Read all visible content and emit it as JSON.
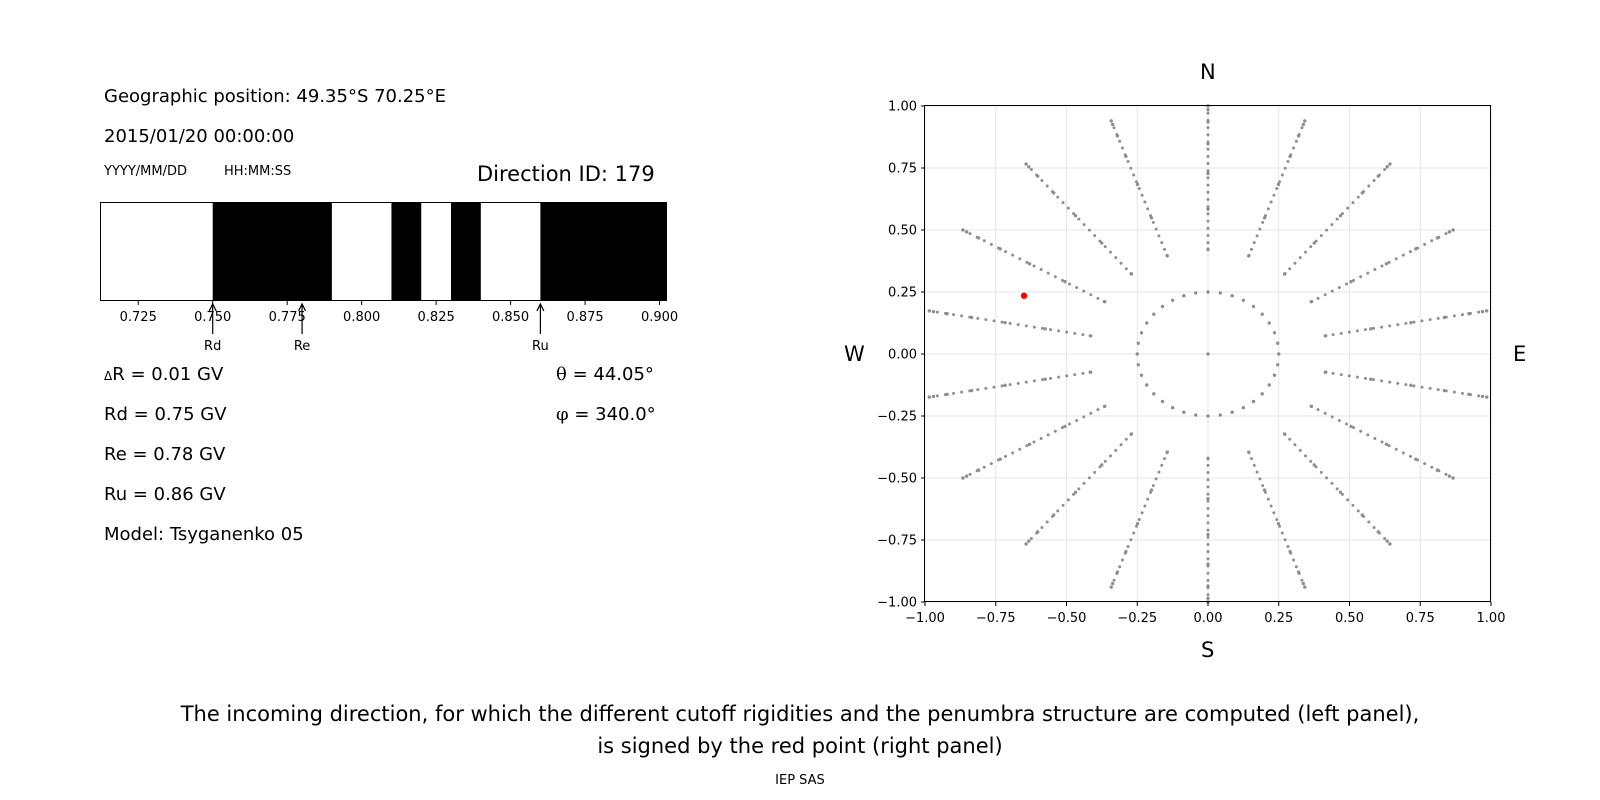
{
  "header": {
    "geo_position": "Geographic position: 49.35°S 70.25°E",
    "datetime": "2015/01/20 00:00:00",
    "date_format": "YYYY/MM/DD",
    "time_format": "HH:MM:SS",
    "direction_id": "Direction ID: 179"
  },
  "params": {
    "delta_r": "R = 0.01 GV",
    "rd": "Rd = 0.75 GV",
    "re": "Re = 0.78 GV",
    "ru": "Ru = 0.86 GV",
    "model": "Model: Tsyganenko 05",
    "theta": "= 44.05°",
    "phi": "= 340.0°"
  },
  "compass": {
    "north": "N",
    "south": "S",
    "west": "W",
    "east": "E"
  },
  "caption": {
    "line1": "The incoming direction, for which the different cutoff rigidities and the penumbra structure are computed (left panel),",
    "line2": "is signed by the red point (right panel)",
    "credit": "IEP SAS"
  },
  "chart_data": [
    {
      "type": "penumbra_bar",
      "xlim": [
        0.7125,
        0.9025
      ],
      "ticks": [
        0.725,
        0.75,
        0.775,
        0.8,
        0.825,
        0.85,
        0.875,
        0.9
      ],
      "tick_labels": [
        "0.725",
        "0.750",
        "0.775",
        "0.800",
        "0.825",
        "0.850",
        "0.875",
        "0.900"
      ],
      "forbidden_bands": [
        [
          0.75,
          0.79
        ],
        [
          0.81,
          0.82
        ],
        [
          0.83,
          0.84
        ],
        [
          0.86,
          0.9025
        ]
      ],
      "markers": [
        {
          "label": "Rd",
          "value": 0.75
        },
        {
          "label": "Re",
          "value": 0.78
        },
        {
          "label": "Ru",
          "value": 0.86
        }
      ],
      "colors": {
        "forbidden": "#000000",
        "allowed": "#ffffff"
      }
    },
    {
      "type": "scatter",
      "xlim": [
        -1,
        1
      ],
      "ylim": [
        -1,
        1
      ],
      "ticks": [
        -1,
        -0.75,
        -0.5,
        -0.25,
        0,
        0.25,
        0.5,
        0.75,
        1
      ],
      "tick_labels": [
        "−1.00",
        "−0.75",
        "−0.50",
        "−0.25",
        "0.00",
        "0.25",
        "0.50",
        "0.75",
        "1.00"
      ],
      "grid": true,
      "grid_ring_radii": [
        0.25,
        0.4225,
        0.584,
        0.728,
        0.848,
        0.936,
        0.985,
        1.0
      ],
      "grid_ray_azimuths_deg": [
        0,
        20,
        40,
        60,
        80,
        100,
        120,
        140,
        160,
        180,
        200,
        220,
        240,
        260,
        280,
        300,
        320,
        340
      ],
      "selected_point": {
        "x": -0.65,
        "y": 0.235
      },
      "colors": {
        "points": "#8f8f8f",
        "selected": "#ff0000"
      }
    }
  ]
}
